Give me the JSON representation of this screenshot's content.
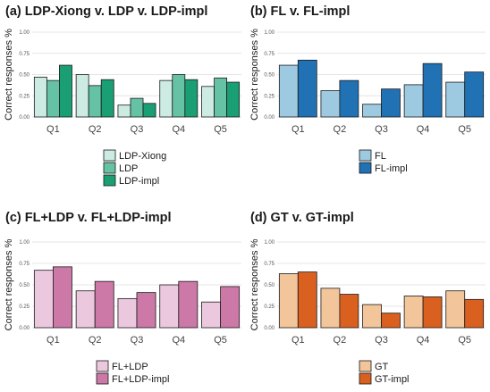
{
  "chart_data": [
    {
      "type": "bar",
      "title": "(a) LDP-Xiong v. LDP v. LDP-impl",
      "ylabel": "Correct responses %",
      "xlabel": "",
      "ylim": [
        0,
        1.0
      ],
      "yticks": [
        "0.00",
        "0.25",
        "0.50",
        "0.75",
        "1.00"
      ],
      "grid": true,
      "legend_position": "bottom",
      "categories": [
        "Q1",
        "Q2",
        "Q3",
        "Q4",
        "Q5"
      ],
      "series": [
        {
          "name": "LDP-Xiong",
          "color": "#ccebe2",
          "values": [
            0.47,
            0.5,
            0.14,
            0.43,
            0.36
          ]
        },
        {
          "name": "LDP",
          "color": "#66c2a4",
          "values": [
            0.43,
            0.37,
            0.22,
            0.5,
            0.46
          ]
        },
        {
          "name": "LDP-impl",
          "color": "#1a9e73",
          "values": [
            0.61,
            0.44,
            0.16,
            0.44,
            0.41
          ]
        }
      ]
    },
    {
      "type": "bar",
      "title": "(b) FL v. FL-impl",
      "ylabel": "Correct responses %",
      "xlabel": "",
      "ylim": [
        0,
        1.0
      ],
      "yticks": [
        "0.00",
        "0.25",
        "0.50",
        "0.75",
        "1.00"
      ],
      "grid": true,
      "legend_position": "bottom",
      "categories": [
        "Q1",
        "Q2",
        "Q3",
        "Q4",
        "Q5"
      ],
      "series": [
        {
          "name": "FL",
          "color": "#9ecae1",
          "values": [
            0.61,
            0.31,
            0.15,
            0.38,
            0.41
          ]
        },
        {
          "name": "FL-impl",
          "color": "#2171b5",
          "values": [
            0.67,
            0.43,
            0.33,
            0.63,
            0.53
          ]
        }
      ]
    },
    {
      "type": "bar",
      "title": "(c) FL+LDP v. FL+LDP-impl",
      "ylabel": "Correct responses %",
      "xlabel": "",
      "ylim": [
        0,
        1.0
      ],
      "yticks": [
        "0.00",
        "0.25",
        "0.50",
        "0.75",
        "1.00"
      ],
      "grid": true,
      "legend_position": "bottom",
      "categories": [
        "Q1",
        "Q2",
        "Q3",
        "Q4",
        "Q5"
      ],
      "series": [
        {
          "name": "FL+LDP",
          "color": "#ecc8de",
          "values": [
            0.67,
            0.43,
            0.34,
            0.5,
            0.3
          ]
        },
        {
          "name": "FL+LDP-impl",
          "color": "#cc79a7",
          "values": [
            0.71,
            0.54,
            0.41,
            0.54,
            0.48
          ]
        }
      ]
    },
    {
      "type": "bar",
      "title": "(d) GT v. GT-impl",
      "ylabel": "Correct responses %",
      "xlabel": "",
      "ylim": [
        0,
        1.0
      ],
      "yticks": [
        "0.00",
        "0.25",
        "0.50",
        "0.75",
        "1.00"
      ],
      "grid": true,
      "legend_position": "bottom",
      "categories": [
        "Q1",
        "Q2",
        "Q3",
        "Q4",
        "Q5"
      ],
      "series": [
        {
          "name": "GT",
          "color": "#f2c59a",
          "values": [
            0.63,
            0.46,
            0.27,
            0.37,
            0.43
          ]
        },
        {
          "name": "GT-impl",
          "color": "#d9601f",
          "values": [
            0.65,
            0.39,
            0.17,
            0.36,
            0.33
          ]
        }
      ]
    }
  ]
}
